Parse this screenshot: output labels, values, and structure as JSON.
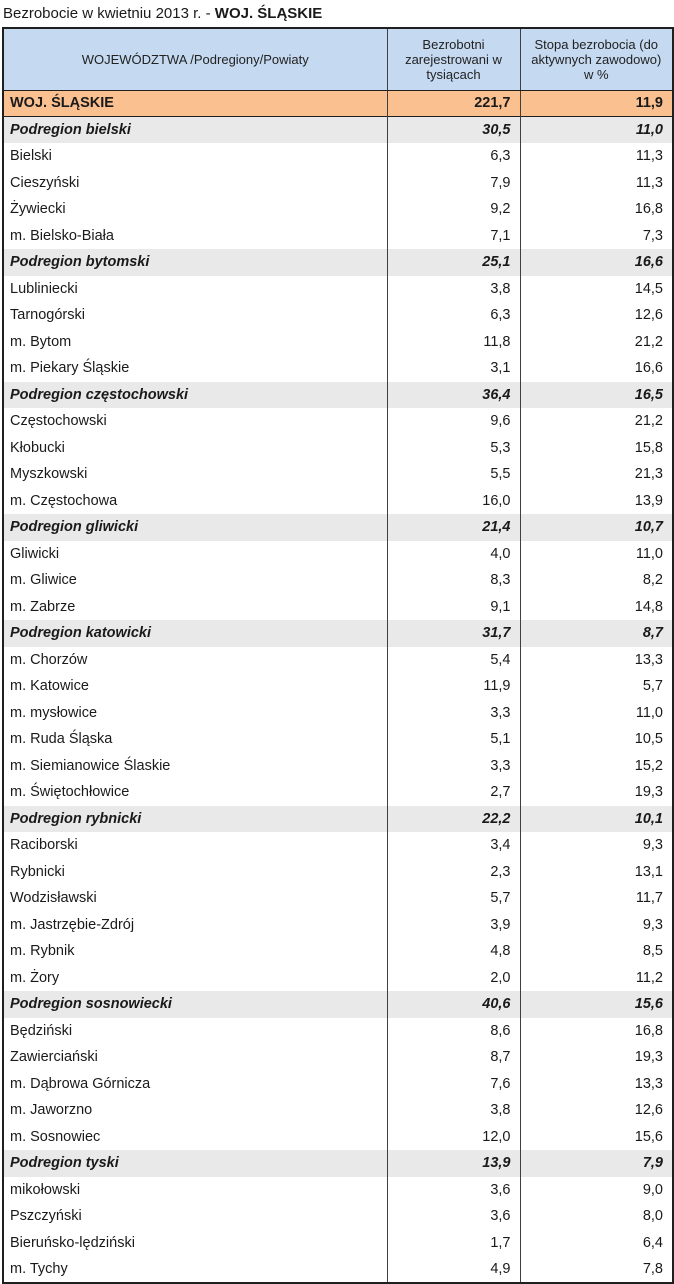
{
  "title": {
    "prefix": "Bezrobocie w kwietniu 2013 r. - ",
    "highlight": "WOJ. ŚLĄSKIE"
  },
  "chart_data": {
    "type": "table",
    "title": "Bezrobocie w kwietniu 2013 r. - WOJ. ŚLĄSKIE",
    "columns": [
      "WOJEWÓDZTWA /Podregiony/Powiaty",
      "Bezrobotni zarejestrowani w tysiącach",
      "Stopa bezrobocia (do aktywnych zawodowo) w %"
    ],
    "rows": [
      {
        "name": "WOJ. ŚLĄSKIE",
        "unemployed": "221,7",
        "rate": "11,9",
        "type": "voivodeship"
      },
      {
        "name": "Podregion bielski",
        "unemployed": "30,5",
        "rate": "11,0",
        "type": "subregion"
      },
      {
        "name": "Bielski",
        "unemployed": "6,3",
        "rate": "11,3",
        "type": "county"
      },
      {
        "name": "Cieszyński",
        "unemployed": "7,9",
        "rate": "11,3",
        "type": "county"
      },
      {
        "name": "Żywiecki",
        "unemployed": "9,2",
        "rate": "16,8",
        "type": "county"
      },
      {
        "name": "m. Bielsko-Biała",
        "unemployed": "7,1",
        "rate": "7,3",
        "type": "county"
      },
      {
        "name": "Podregion bytomski",
        "unemployed": "25,1",
        "rate": "16,6",
        "type": "subregion"
      },
      {
        "name": "Lubliniecki",
        "unemployed": "3,8",
        "rate": "14,5",
        "type": "county"
      },
      {
        "name": "Tarnogórski",
        "unemployed": "6,3",
        "rate": "12,6",
        "type": "county"
      },
      {
        "name": "m. Bytom",
        "unemployed": "11,8",
        "rate": "21,2",
        "type": "county"
      },
      {
        "name": "m. Piekary Śląskie",
        "unemployed": "3,1",
        "rate": "16,6",
        "type": "county"
      },
      {
        "name": "Podregion częstochowski",
        "unemployed": "36,4",
        "rate": "16,5",
        "type": "subregion"
      },
      {
        "name": "Częstochowski",
        "unemployed": "9,6",
        "rate": "21,2",
        "type": "county"
      },
      {
        "name": "Kłobucki",
        "unemployed": "5,3",
        "rate": "15,8",
        "type": "county"
      },
      {
        "name": "Myszkowski",
        "unemployed": "5,5",
        "rate": "21,3",
        "type": "county"
      },
      {
        "name": "m. Częstochowa",
        "unemployed": "16,0",
        "rate": "13,9",
        "type": "county"
      },
      {
        "name": "Podregion gliwicki",
        "unemployed": "21,4",
        "rate": "10,7",
        "type": "subregion"
      },
      {
        "name": "Gliwicki",
        "unemployed": "4,0",
        "rate": "11,0",
        "type": "county"
      },
      {
        "name": "m. Gliwice",
        "unemployed": "8,3",
        "rate": "8,2",
        "type": "county"
      },
      {
        "name": "m. Zabrze",
        "unemployed": "9,1",
        "rate": "14,8",
        "type": "county"
      },
      {
        "name": "Podregion katowicki",
        "unemployed": "31,7",
        "rate": "8,7",
        "type": "subregion"
      },
      {
        "name": "m. Chorzów",
        "unemployed": "5,4",
        "rate": "13,3",
        "type": "county"
      },
      {
        "name": "m. Katowice",
        "unemployed": "11,9",
        "rate": "5,7",
        "type": "county"
      },
      {
        "name": "m. mysłowice",
        "unemployed": "3,3",
        "rate": "11,0",
        "type": "county"
      },
      {
        "name": "m. Ruda Śląska",
        "unemployed": "5,1",
        "rate": "10,5",
        "type": "county"
      },
      {
        "name": "m. Siemianowice Ślaskie",
        "unemployed": "3,3",
        "rate": "15,2",
        "type": "county"
      },
      {
        "name": "m. Świętochłowice",
        "unemployed": "2,7",
        "rate": "19,3",
        "type": "county"
      },
      {
        "name": "Podregion rybnicki",
        "unemployed": "22,2",
        "rate": "10,1",
        "type": "subregion"
      },
      {
        "name": "Raciborski",
        "unemployed": "3,4",
        "rate": "9,3",
        "type": "county"
      },
      {
        "name": "Rybnicki",
        "unemployed": "2,3",
        "rate": "13,1",
        "type": "county"
      },
      {
        "name": "Wodzisławski",
        "unemployed": "5,7",
        "rate": "11,7",
        "type": "county"
      },
      {
        "name": "m. Jastrzębie-Zdrój",
        "unemployed": "3,9",
        "rate": "9,3",
        "type": "county"
      },
      {
        "name": "m. Rybnik",
        "unemployed": "4,8",
        "rate": "8,5",
        "type": "county"
      },
      {
        "name": "m. Żory",
        "unemployed": "2,0",
        "rate": "11,2",
        "type": "county"
      },
      {
        "name": "Podregion sosnowiecki",
        "unemployed": "40,6",
        "rate": "15,6",
        "type": "subregion"
      },
      {
        "name": "Będziński",
        "unemployed": "8,6",
        "rate": "16,8",
        "type": "county"
      },
      {
        "name": "Zawierciański",
        "unemployed": "8,7",
        "rate": "19,3",
        "type": "county"
      },
      {
        "name": "m. Dąbrowa Górnicza",
        "unemployed": "7,6",
        "rate": "13,3",
        "type": "county"
      },
      {
        "name": "m. Jaworzno",
        "unemployed": "3,8",
        "rate": "12,6",
        "type": "county"
      },
      {
        "name": "m. Sosnowiec",
        "unemployed": "12,0",
        "rate": "15,6",
        "type": "county"
      },
      {
        "name": "Podregion tyski",
        "unemployed": "13,9",
        "rate": "7,9",
        "type": "subregion"
      },
      {
        "name": "mikołowski",
        "unemployed": "3,6",
        "rate": "9,0",
        "type": "county"
      },
      {
        "name": "Pszczyński",
        "unemployed": "3,6",
        "rate": "8,0",
        "type": "county"
      },
      {
        "name": "Bieruńsko-lędziński",
        "unemployed": "1,7",
        "rate": "6,4",
        "type": "county"
      },
      {
        "name": "m. Tychy",
        "unemployed": "4,9",
        "rate": "7,8",
        "type": "county"
      }
    ]
  },
  "colors": {
    "header_bg": "#c5d9f1",
    "voivodeship_row_bg": "#fac090",
    "subregion_row_bg": "#e9e9e9",
    "border": "#1f1f1f"
  }
}
